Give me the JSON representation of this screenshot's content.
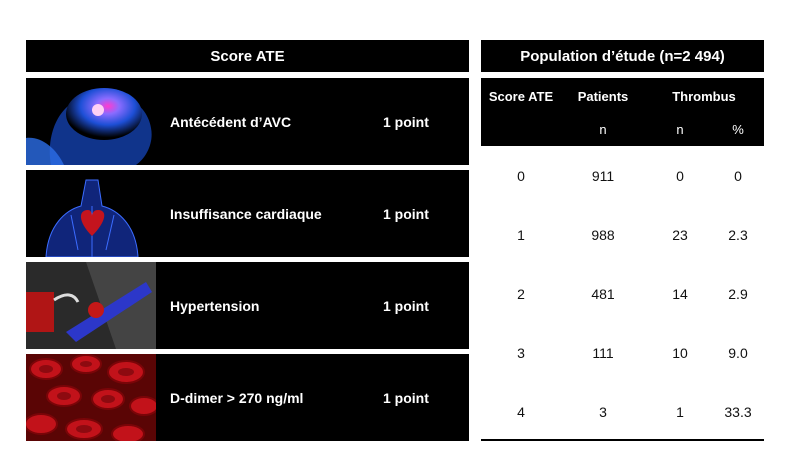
{
  "left_header": "Score ATE",
  "right_header": "Population d’étude (n=2 494)",
  "criteria": [
    {
      "label": "Antécédent d’AVC",
      "points": "1 point",
      "image": "brain-illustration"
    },
    {
      "label": "Insuffisance cardiaque",
      "points": "1 point",
      "image": "heart-illustration"
    },
    {
      "label": "Hypertension",
      "points": "1 point",
      "image": "blood-pressure-cuff-illustration"
    },
    {
      "label": "D-dimer > 270 ng/ml",
      "points": "1 point",
      "image": "red-blood-cells-illustration"
    }
  ],
  "table": {
    "col_score": "Score ATE",
    "col_patients": "Patients",
    "col_thrombus": "Thrombus",
    "sub_patients_n": "n",
    "sub_thrombus_n": "n",
    "sub_thrombus_pct": "%",
    "rows": [
      {
        "score": "0",
        "patients": "911",
        "thrombus_n": "0",
        "thrombus_pct": "0"
      },
      {
        "score": "1",
        "patients": "988",
        "thrombus_n": "23",
        "thrombus_pct": "2.3"
      },
      {
        "score": "2",
        "patients": "481",
        "thrombus_n": "14",
        "thrombus_pct": "2.9"
      },
      {
        "score": "3",
        "patients": "111",
        "thrombus_n": "10",
        "thrombus_pct": "9.0"
      },
      {
        "score": "4",
        "patients": "3",
        "thrombus_n": "1",
        "thrombus_pct": "33.3"
      }
    ]
  }
}
